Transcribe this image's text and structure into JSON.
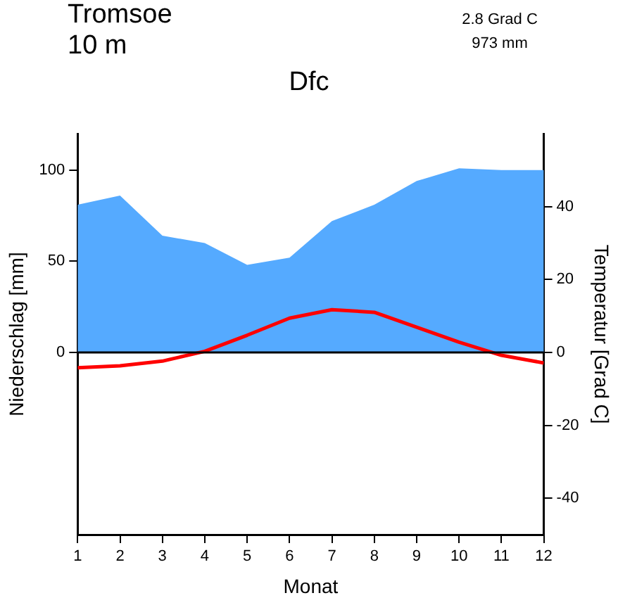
{
  "chart_data": {
    "type": "area",
    "title": "Dfc",
    "xlabel": "Monat",
    "ylabel": "Niederschlag [mm]",
    "y2label": "Temperatur [Grad C]",
    "annotations": [
      "Tromsoe",
      "10 m",
      "2.8 Grad C",
      "973 mm"
    ],
    "x": [
      1,
      2,
      3,
      4,
      5,
      6,
      7,
      8,
      9,
      10,
      11,
      12
    ],
    "series": [
      {
        "type": "area",
        "color": "#55aaff",
        "values": [
          81,
          86,
          64,
          60,
          48,
          52,
          72,
          81,
          94,
          101,
          100,
          100
        ]
      },
      {
        "type": "line",
        "axis": "y2",
        "color": "#ff0000",
        "values": [
          -4.2,
          -3.7,
          -2.4,
          0.3,
          4.7,
          9.4,
          11.7,
          11,
          6.9,
          2.8,
          -0.8,
          -2.9
        ]
      }
    ],
    "xlim": [
      1,
      12
    ],
    "xticks": [
      1,
      2,
      3,
      4,
      5,
      6,
      7,
      8,
      9,
      10,
      11,
      12
    ],
    "ylim": [
      -100,
      120
    ],
    "yticks": [
      0,
      50,
      100
    ],
    "y2lim": [
      -50,
      60
    ],
    "y2ticks": [
      -40,
      -20,
      0,
      20,
      40
    ],
    "ref_lines": [
      {
        "axis": "y",
        "value": 0,
        "color": "#000000"
      }
    ],
    "grid": false,
    "legend": false,
    "marker": "none",
    "line_style": "solid"
  }
}
